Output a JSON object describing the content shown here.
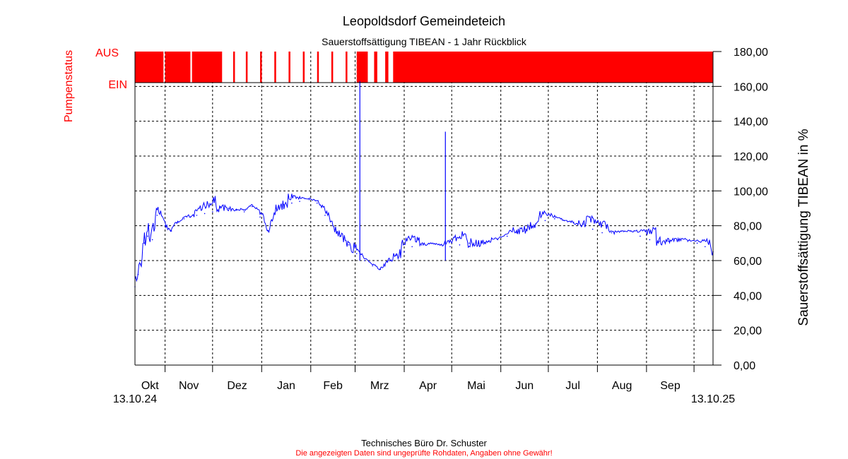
{
  "title": "Leopoldsdorf Gemeindeteich",
  "subtitle": "Sauerstoffsättigung  TIBEAN - 1 Jahr Rückblick",
  "footer": {
    "line1": "Technisches Büro Dr. Schuster",
    "line2": "Die angezeigten Daten sind ungeprüfte Rohdaten, Angaben ohne Gewähr!"
  },
  "colors": {
    "series": "#0000ff",
    "pump": "#ff0000",
    "grid": "#000000"
  },
  "chart_data": {
    "type": "line",
    "ylabel": "Sauerstoffsättigung  TIBEAN in %",
    "ylim": [
      0,
      180
    ],
    "yticks": [
      "0,00",
      "20,00",
      "40,00",
      "60,00",
      "80,00",
      "100,00",
      "120,00",
      "140,00",
      "160,00",
      "180,00"
    ],
    "x_start_label": "13.10.24",
    "x_end_label": "13.10.25",
    "months": [
      "Okt",
      "Nov",
      "Dez",
      "Jan",
      "Feb",
      "Mrz",
      "Apr",
      "Mai",
      "Jun",
      "Jul",
      "Aug",
      "Sep"
    ],
    "grid": true,
    "series": [
      {
        "x": [
          "2024-10-13",
          "2024-10-15",
          "2024-10-17",
          "2024-10-19",
          "2024-10-21",
          "2024-10-24",
          "2024-10-27",
          "2024-11-01",
          "2024-11-05",
          "2024-11-09",
          "2024-11-13",
          "2024-11-17",
          "2024-11-21",
          "2024-11-26",
          "2024-12-01",
          "2024-12-06",
          "2024-12-11",
          "2024-12-16",
          "2024-12-21",
          "2024-12-26",
          "2024-12-31",
          "2025-01-05",
          "2025-01-10",
          "2025-01-15",
          "2025-01-20",
          "2025-01-25",
          "2025-01-31",
          "2025-02-05",
          "2025-02-10",
          "2025-02-15",
          "2025-02-20",
          "2025-02-25",
          "2025-03-02",
          "2025-03-07",
          "2025-03-12",
          "2025-03-17",
          "2025-03-22",
          "2025-03-27",
          "2025-04-01",
          "2025-04-06",
          "2025-04-12",
          "2025-04-18",
          "2025-04-24",
          "2025-04-30",
          "2025-05-06",
          "2025-05-12",
          "2025-05-18",
          "2025-05-24",
          "2025-05-30",
          "2025-06-05",
          "2025-06-11",
          "2025-06-17",
          "2025-06-23",
          "2025-06-29",
          "2025-07-05",
          "2025-07-11",
          "2025-07-17",
          "2025-07-23",
          "2025-07-29",
          "2025-08-04",
          "2025-08-10",
          "2025-08-16",
          "2025-08-22",
          "2025-08-28",
          "2025-09-03",
          "2025-09-09",
          "2025-09-15",
          "2025-09-21",
          "2025-09-27",
          "2025-10-03",
          "2025-10-08",
          "2025-10-13"
        ],
        "y": [
          45,
          52,
          58,
          70,
          74,
          72,
          86,
          80,
          77,
          82,
          84,
          85,
          86,
          87,
          88,
          91,
          90,
          89,
          88,
          91,
          85,
          77,
          90,
          92,
          93,
          94,
          95,
          93,
          86,
          80,
          74,
          69,
          64,
          60,
          57,
          55,
          60,
          63,
          65,
          68,
          69,
          70,
          69,
          68,
          69,
          70,
          70,
          71,
          72,
          74,
          76,
          78,
          81,
          83,
          84,
          83,
          82,
          81,
          78,
          76,
          76,
          77,
          77,
          74,
          72,
          71,
          71,
          72,
          71,
          70,
          68,
          65
        ]
      }
    ],
    "spikes": [
      {
        "x": "2025-03-04",
        "y": 163
      },
      {
        "x": "2025-04-27",
        "y": 134
      }
    ],
    "pump_status": {
      "label": "Pumpenstatus",
      "high_label": "AUS",
      "low_label": "EIN",
      "on_intervals": [
        [
          "2024-10-13",
          "2024-10-31"
        ],
        [
          "2024-11-01",
          "2024-11-17"
        ],
        [
          "2024-11-18",
          "2024-12-07"
        ],
        [
          "2024-12-14",
          "2024-12-15"
        ],
        [
          "2024-12-22",
          "2024-12-23"
        ],
        [
          "2024-12-31",
          "2025-01-01"
        ],
        [
          "2025-01-09",
          "2025-01-10"
        ],
        [
          "2025-01-18",
          "2025-01-19"
        ],
        [
          "2025-01-27",
          "2025-01-28"
        ],
        [
          "2025-02-05",
          "2025-02-06"
        ],
        [
          "2025-02-14",
          "2025-02-15"
        ],
        [
          "2025-02-23",
          "2025-02-24"
        ],
        [
          "2025-03-02",
          "2025-03-09"
        ],
        [
          "2025-03-13",
          "2025-03-15"
        ],
        [
          "2025-03-20",
          "2025-03-22"
        ],
        [
          "2025-03-25",
          "2025-10-13"
        ]
      ]
    }
  }
}
